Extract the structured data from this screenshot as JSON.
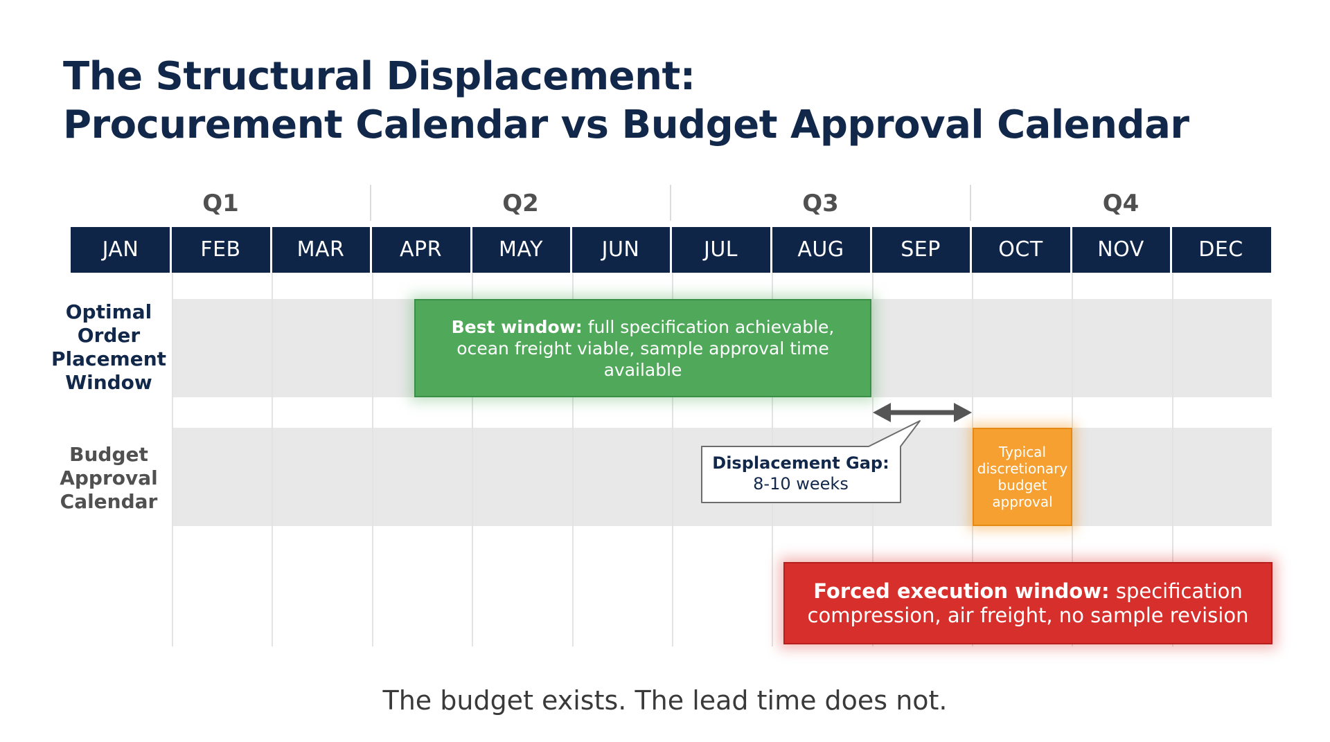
{
  "title": {
    "line1": "The Structural Displacement:",
    "line2": "Procurement Calendar vs Budget Approval Calendar"
  },
  "quarters": [
    "Q1",
    "Q2",
    "Q3",
    "Q4"
  ],
  "months": [
    "JAN",
    "FEB",
    "MAR",
    "APR",
    "MAY",
    "JUN",
    "JUL",
    "AUG",
    "SEP",
    "OCT",
    "NOV",
    "DEC"
  ],
  "rows": {
    "optimal": {
      "label": "Optimal Order Placement Window"
    },
    "budget": {
      "label": "Budget Approval Calendar"
    }
  },
  "best_window": {
    "bold": "Best window:",
    "text": " full specification achievable, ocean freight viable, sample approval time available"
  },
  "displacement_gap": {
    "title": "Displacement Gap:",
    "value": "8-10 weeks"
  },
  "budget_approval": {
    "text": "Typical discretionary budget approval"
  },
  "forced_window": {
    "bold": "Forced execution window:",
    "text": " specification compression, air freight, no sample revision"
  },
  "tagline": "The budget exists. The lead time does not.",
  "colors": {
    "navy": "#0f2547",
    "title": "#12284a",
    "green": "#50a85a",
    "orange": "#f5a030",
    "red": "#d7302c",
    "band": "#e8e8e8",
    "arrow": "#555555"
  }
}
